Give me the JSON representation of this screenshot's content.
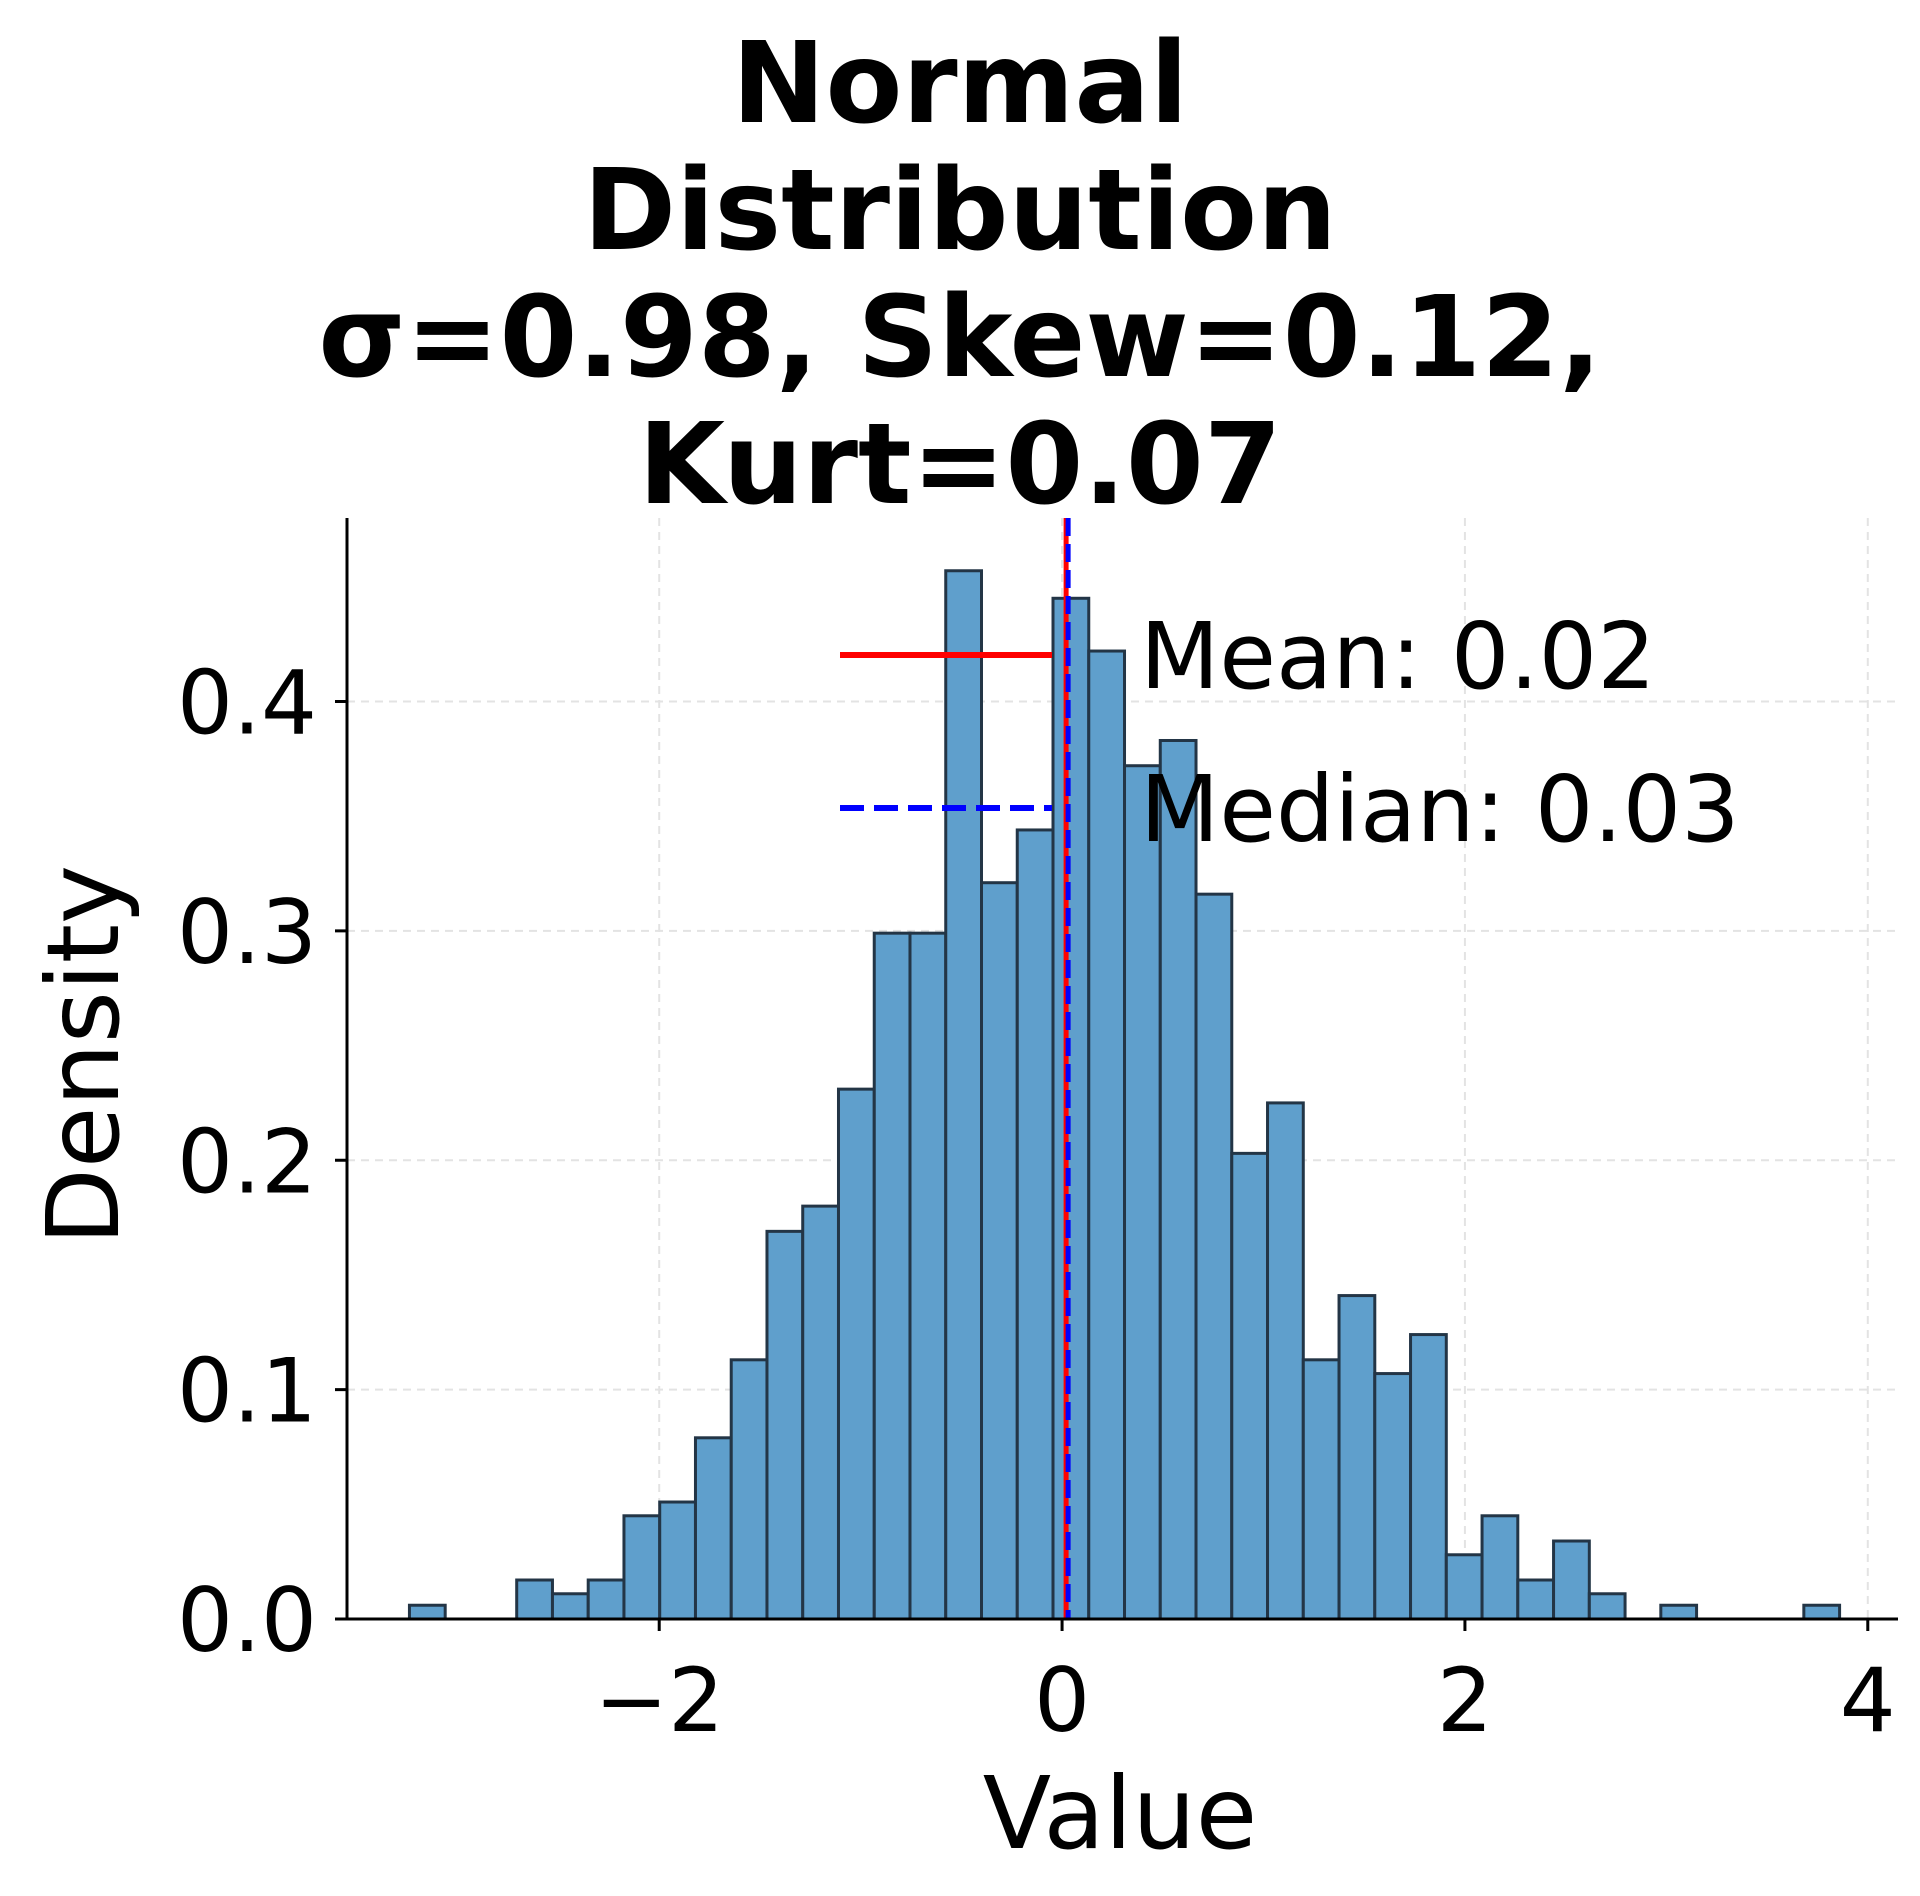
{
  "chart_data": {
    "type": "bar",
    "title_lines": [
      "Normal",
      "Distribution",
      "σ=0.98, Skew=0.12,",
      "Kurt=0.07"
    ],
    "xlabel": "Value",
    "ylabel": "Density",
    "xlim": [
      -3.55,
      4.15
    ],
    "ylim": [
      0,
      0.48
    ],
    "grid": true,
    "x_ticks": [
      -2,
      0,
      2,
      4
    ],
    "x_tick_labels": [
      "−2",
      "0",
      "2",
      "4"
    ],
    "y_ticks": [
      0.0,
      0.1,
      0.2,
      0.3,
      0.4
    ],
    "y_tick_labels": [
      "0.0",
      "0.1",
      "0.2",
      "0.3",
      "0.4"
    ],
    "bin_start": -3.24,
    "bin_width": 0.1775,
    "values": [
      0.006,
      0,
      0,
      0.017,
      0.011,
      0.017,
      0.045,
      0.051,
      0.079,
      0.113,
      0.169,
      0.18,
      0.231,
      0.299,
      0.299,
      0.457,
      0.321,
      0.344,
      0.445,
      0.422,
      0.372,
      0.383,
      0.316,
      0.203,
      0.225,
      0.113,
      0.141,
      0.107,
      0.124,
      0.028,
      0.045,
      0.017,
      0.034,
      0.011,
      0,
      0.006,
      0,
      0,
      0,
      0.006
    ],
    "bar_color": "#5f9fcc",
    "bar_edge_color": "#233546",
    "mean": 0.02,
    "median": 0.03,
    "mean_color": "#ff0000",
    "median_color": "#0000ff",
    "legend": [
      {
        "label": "Mean: 0.02",
        "style": "solid",
        "color": "#ff0000"
      },
      {
        "label": "Median: 0.03",
        "style": "dashed",
        "color": "#0000ff"
      }
    ],
    "legend_position": "upper-right"
  }
}
